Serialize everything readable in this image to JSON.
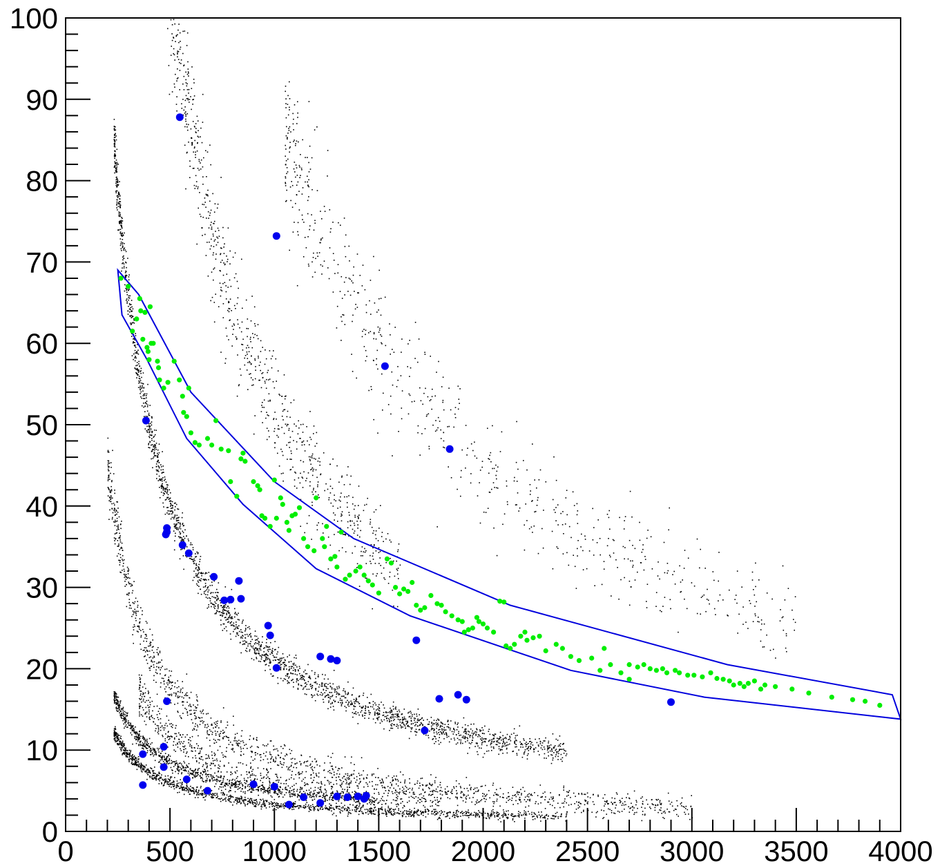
{
  "chart_data": {
    "type": "scatter",
    "title": "",
    "xlabel": "",
    "ylabel": "",
    "xlim": [
      0,
      4000
    ],
    "ylim": [
      0,
      100
    ],
    "x_ticks": [
      "0",
      "500",
      "1000",
      "1500",
      "2000",
      "2500",
      "3000",
      "3500",
      "4000"
    ],
    "y_ticks": [
      "0",
      "10",
      "20",
      "30",
      "40",
      "50",
      "60",
      "70",
      "80",
      "90",
      "100"
    ],
    "grid": false,
    "background_bands": [
      {
        "name": "band-1",
        "a": 9000,
        "b": 0.0,
        "x_range": [
          200,
          3000
        ],
        "spread": 0.9,
        "n": 1400
      },
      {
        "name": "band-2",
        "a": 19000,
        "b": 2.0,
        "x_range": [
          230,
          2400
        ],
        "spread": 0.6,
        "n": 2200
      },
      {
        "name": "band-3",
        "a": 3500,
        "b": 1.5,
        "x_range": [
          230,
          1500
        ],
        "spread": 0.4,
        "n": 900
      },
      {
        "name": "band-4",
        "a": 2600,
        "b": 0.8,
        "x_range": [
          230,
          2400
        ],
        "spread": 0.35,
        "n": 1300
      },
      {
        "name": "band-5",
        "a": 52000,
        "b": 0.0,
        "x_range": [
          480,
          1600
        ],
        "spread": 1.4,
        "n": 900
      },
      {
        "name": "band-6",
        "a": 90000,
        "b": 0.0,
        "x_range": [
          1050,
          3500
        ],
        "spread": 1.6,
        "n": 700
      },
      {
        "name": "band-7",
        "a": 6000,
        "b": 0.0,
        "x_range": [
          350,
          1800
        ],
        "spread": 0.9,
        "n": 600
      }
    ],
    "colors": {
      "background_points": "#000000",
      "selected_points": "#00ee00",
      "highlight_points": "#0000ee",
      "cut_polygon": "#0000dd",
      "frame": "#000000"
    },
    "cut_polygon": [
      [
        250,
        69
      ],
      [
        350,
        66
      ],
      [
        600,
        54
      ],
      [
        800,
        48.5
      ],
      [
        1000,
        43
      ],
      [
        1380,
        36
      ],
      [
        2130,
        27.8
      ],
      [
        3170,
        20.5
      ],
      [
        3960,
        16.8
      ],
      [
        4000,
        13.8
      ],
      [
        3060,
        16.5
      ],
      [
        2420,
        19.8
      ],
      [
        1650,
        26.5
      ],
      [
        1200,
        32.3
      ],
      [
        850,
        40.2
      ],
      [
        580,
        48.3
      ],
      [
        390,
        58
      ],
      [
        270,
        63.5
      ]
    ],
    "green_points": [
      [
        265,
        68
      ],
      [
        300,
        67
      ],
      [
        320,
        61.5
      ],
      [
        340,
        63
      ],
      [
        355,
        65.5
      ],
      [
        360,
        64
      ],
      [
        370,
        60.5
      ],
      [
        380,
        63.8
      ],
      [
        390,
        59.5
      ],
      [
        395,
        59
      ],
      [
        400,
        58
      ],
      [
        405,
        64.5
      ],
      [
        410,
        60
      ],
      [
        420,
        60
      ],
      [
        440,
        57.8
      ],
      [
        445,
        57
      ],
      [
        450,
        55.5
      ],
      [
        470,
        54.5
      ],
      [
        490,
        55.2
      ],
      [
        520,
        57.8
      ],
      [
        545,
        55.5
      ],
      [
        560,
        53.5
      ],
      [
        565,
        51.5
      ],
      [
        580,
        51
      ],
      [
        590,
        54.5
      ],
      [
        600,
        49
      ],
      [
        620,
        47.8
      ],
      [
        640,
        47.5
      ],
      [
        680,
        48.3
      ],
      [
        700,
        47.5
      ],
      [
        720,
        50.5
      ],
      [
        745,
        47
      ],
      [
        780,
        46.8
      ],
      [
        790,
        43
      ],
      [
        820,
        41.2
      ],
      [
        840,
        45.8
      ],
      [
        850,
        46.5
      ],
      [
        860,
        45.5
      ],
      [
        900,
        43
      ],
      [
        920,
        42.5
      ],
      [
        930,
        42
      ],
      [
        940,
        38.8
      ],
      [
        955,
        38.5
      ],
      [
        980,
        37.5
      ],
      [
        1000,
        43.2
      ],
      [
        1010,
        38.5
      ],
      [
        1030,
        41
      ],
      [
        1040,
        40.2
      ],
      [
        1060,
        38
      ],
      [
        1070,
        37
      ],
      [
        1085,
        38.8
      ],
      [
        1100,
        39
      ],
      [
        1120,
        39.8
      ],
      [
        1140,
        36
      ],
      [
        1160,
        35
      ],
      [
        1190,
        34.5
      ],
      [
        1200,
        41
      ],
      [
        1230,
        36
      ],
      [
        1240,
        35
      ],
      [
        1250,
        37.5
      ],
      [
        1270,
        33.5
      ],
      [
        1290,
        33.8
      ],
      [
        1300,
        32.5
      ],
      [
        1320,
        36.8
      ],
      [
        1340,
        31
      ],
      [
        1360,
        31.5
      ],
      [
        1390,
        32
      ],
      [
        1410,
        32.5
      ],
      [
        1430,
        31.5
      ],
      [
        1450,
        30.8
      ],
      [
        1470,
        30.3
      ],
      [
        1500,
        29.3
      ],
      [
        1540,
        33.5
      ],
      [
        1560,
        33
      ],
      [
        1580,
        30
      ],
      [
        1600,
        29.2
      ],
      [
        1620,
        29.8
      ],
      [
        1640,
        29.5
      ],
      [
        1660,
        30.6
      ],
      [
        1680,
        27.8
      ],
      [
        1700,
        27.2
      ],
      [
        1720,
        27.5
      ],
      [
        1750,
        29
      ],
      [
        1780,
        28
      ],
      [
        1800,
        27.8
      ],
      [
        1820,
        27
      ],
      [
        1850,
        26.5
      ],
      [
        1880,
        26
      ],
      [
        1900,
        25.8
      ],
      [
        1910,
        24.5
      ],
      [
        1930,
        24.8
      ],
      [
        1950,
        25
      ],
      [
        1970,
        26.3
      ],
      [
        1980,
        25.8
      ],
      [
        2000,
        25.5
      ],
      [
        2020,
        25
      ],
      [
        2050,
        24.5
      ],
      [
        2080,
        28.3
      ],
      [
        2100,
        28.2
      ],
      [
        2130,
        22.5
      ],
      [
        2150,
        23
      ],
      [
        2180,
        24
      ],
      [
        2200,
        24.5
      ],
      [
        2210,
        23.5
      ],
      [
        2240,
        23.8
      ],
      [
        2270,
        24
      ],
      [
        2300,
        22.2
      ],
      [
        2350,
        23
      ],
      [
        2380,
        22.5
      ],
      [
        2420,
        21.5
      ],
      [
        2460,
        21
      ],
      [
        2520,
        21.3
      ],
      [
        2560,
        19.8
      ],
      [
        2580,
        22.5
      ],
      [
        2610,
        20.5
      ],
      [
        2660,
        19.5
      ],
      [
        2700,
        20.5
      ],
      [
        2740,
        20.2
      ],
      [
        2770,
        20.5
      ],
      [
        2800,
        20
      ],
      [
        2830,
        19.8
      ],
      [
        2860,
        20
      ],
      [
        2880,
        19.5
      ],
      [
        2920,
        19.8
      ],
      [
        2940,
        19.5
      ],
      [
        2980,
        19.2
      ],
      [
        3010,
        19.2
      ],
      [
        3050,
        19
      ],
      [
        3090,
        19.5
      ],
      [
        3120,
        18.8
      ],
      [
        3150,
        18.7
      ],
      [
        3180,
        18.5
      ],
      [
        3200,
        18
      ],
      [
        3230,
        18.2
      ],
      [
        3250,
        17.8
      ],
      [
        3270,
        18.2
      ],
      [
        3300,
        18.5
      ],
      [
        3330,
        17.5
      ],
      [
        3350,
        18
      ],
      [
        3400,
        17.8
      ],
      [
        3480,
        17.5
      ],
      [
        3560,
        17
      ],
      [
        3670,
        16.5
      ],
      [
        3770,
        16.2
      ],
      [
        3830,
        16
      ],
      [
        3900,
        15.5
      ],
      [
        2700,
        18.7
      ],
      [
        2110,
        22.8
      ]
    ],
    "blue_points": [
      [
        547,
        87.8
      ],
      [
        1010,
        73.2
      ],
      [
        1530,
        57.2
      ],
      [
        1840,
        47
      ],
      [
        385,
        50.5
      ],
      [
        485,
        37.3
      ],
      [
        485,
        36.8
      ],
      [
        480,
        36.5
      ],
      [
        560,
        35.2
      ],
      [
        590,
        34.2
      ],
      [
        710,
        31.3
      ],
      [
        830,
        30.8
      ],
      [
        760,
        28.4
      ],
      [
        790,
        28.5
      ],
      [
        840,
        28.6
      ],
      [
        970,
        25.3
      ],
      [
        980,
        24.1
      ],
      [
        1010,
        20.1
      ],
      [
        1220,
        21.5
      ],
      [
        1270,
        21.2
      ],
      [
        1300,
        21
      ],
      [
        1680,
        23.5
      ],
      [
        1790,
        16.3
      ],
      [
        1880,
        16.8
      ],
      [
        1920,
        16.2
      ],
      [
        2900,
        15.9
      ],
      [
        485,
        16
      ],
      [
        1720,
        12.4
      ],
      [
        370,
        9.5
      ],
      [
        470,
        10.4
      ],
      [
        470,
        7.9
      ],
      [
        580,
        6.4
      ],
      [
        680,
        5
      ],
      [
        900,
        5.8
      ],
      [
        1000,
        5.5
      ],
      [
        1070,
        3.3
      ],
      [
        1140,
        4.2
      ],
      [
        1220,
        3.5
      ],
      [
        1300,
        4.3
      ],
      [
        1350,
        4.2
      ],
      [
        1400,
        4.3
      ],
      [
        1430,
        4
      ],
      [
        1440,
        4.4
      ],
      [
        370,
        5.7
      ]
    ]
  }
}
